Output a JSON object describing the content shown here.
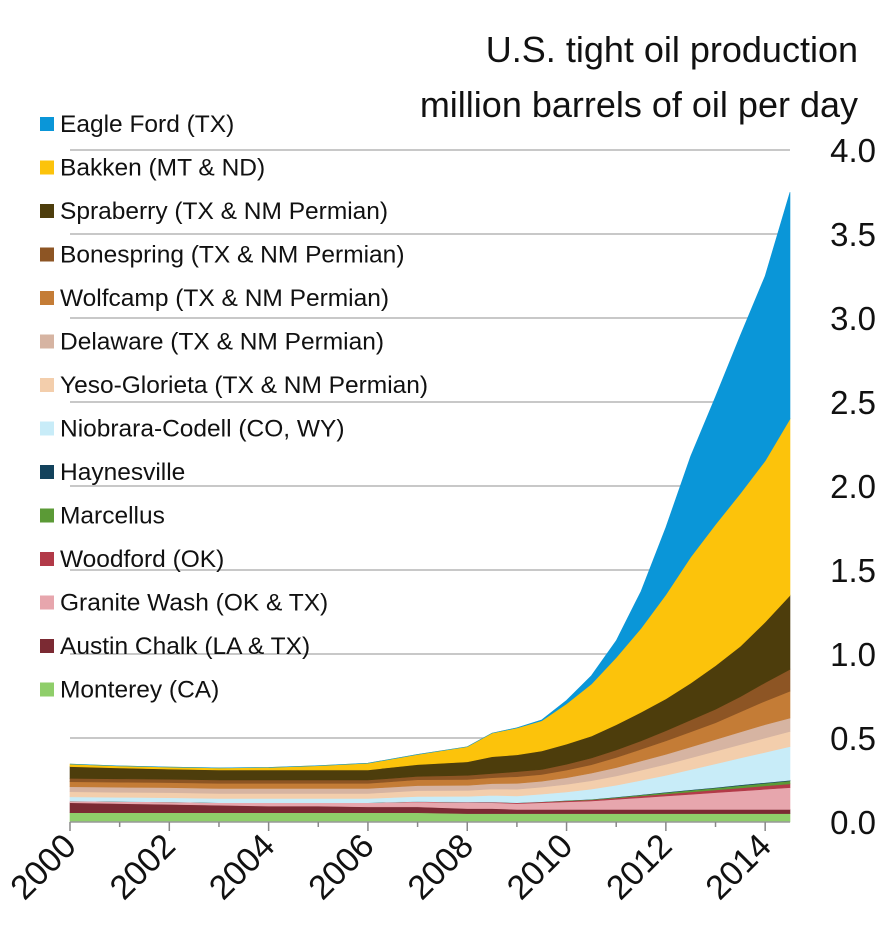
{
  "chart_data": {
    "type": "area",
    "stacked": true,
    "title": "U.S. tight oil production",
    "subtitle": "million barrels of oil per day",
    "xlabel": "",
    "ylabel": "",
    "xlim": [
      2000,
      2014.5
    ],
    "ylim": [
      0,
      4.0
    ],
    "y_ticks": [
      "0.0",
      "0.5",
      "1.0",
      "1.5",
      "2.0",
      "2.5",
      "3.0",
      "3.5",
      "4.0"
    ],
    "x_ticks": [
      "2000",
      "2002",
      "2004",
      "2006",
      "2008",
      "2010",
      "2012",
      "2014"
    ],
    "grid": "horizontal",
    "y_axis_side": "right",
    "legend_position": "top-left",
    "x": [
      2000,
      2001,
      2002,
      2003,
      2004,
      2005,
      2006,
      2007,
      2008,
      2008.5,
      2009,
      2009.5,
      2010,
      2010.5,
      2011,
      2011.5,
      2012,
      2012.5,
      2013,
      2013.5,
      2014,
      2014.5
    ],
    "series": [
      {
        "name": "Monterey (CA)",
        "color": "#8fce6a",
        "values": [
          0.055,
          0.055,
          0.055,
          0.055,
          0.055,
          0.055,
          0.055,
          0.055,
          0.05,
          0.05,
          0.05,
          0.05,
          0.05,
          0.05,
          0.05,
          0.05,
          0.05,
          0.05,
          0.05,
          0.05,
          0.05,
          0.05
        ]
      },
      {
        "name": "Austin Chalk (LA & TX)",
        "color": "#7b2a33",
        "values": [
          0.06,
          0.055,
          0.05,
          0.045,
          0.04,
          0.04,
          0.035,
          0.035,
          0.03,
          0.03,
          0.025,
          0.025,
          0.025,
          0.025,
          0.025,
          0.025,
          0.025,
          0.025,
          0.025,
          0.025,
          0.025,
          0.025
        ]
      },
      {
        "name": "Granite Wash (OK & TX)",
        "color": "#e7a6ad",
        "values": [
          0.01,
          0.012,
          0.015,
          0.015,
          0.02,
          0.02,
          0.025,
          0.03,
          0.035,
          0.035,
          0.035,
          0.04,
          0.045,
          0.05,
          0.06,
          0.07,
          0.08,
          0.09,
          0.1,
          0.11,
          0.12,
          0.13
        ]
      },
      {
        "name": "Woodford (OK)",
        "color": "#b23a48",
        "values": [
          0,
          0,
          0,
          0,
          0,
          0,
          0,
          0.002,
          0.003,
          0.004,
          0.005,
          0.005,
          0.006,
          0.007,
          0.008,
          0.01,
          0.012,
          0.014,
          0.016,
          0.018,
          0.02,
          0.022
        ]
      },
      {
        "name": "Marcellus",
        "color": "#5b9a36",
        "values": [
          0,
          0,
          0,
          0,
          0,
          0,
          0,
          0,
          0,
          0,
          0,
          0.001,
          0.002,
          0.003,
          0.004,
          0.006,
          0.008,
          0.01,
          0.012,
          0.014,
          0.016,
          0.018
        ]
      },
      {
        "name": "Haynesville",
        "color": "#13425c",
        "values": [
          0,
          0,
          0,
          0,
          0,
          0,
          0,
          0,
          0,
          0,
          0,
          0,
          0.001,
          0.001,
          0.002,
          0.002,
          0.003,
          0.003,
          0.003,
          0.004,
          0.004,
          0.004
        ]
      },
      {
        "name": "Niobrara-Codell (CO, WY)",
        "color": "#c8ecf8",
        "values": [
          0.025,
          0.025,
          0.025,
          0.025,
          0.025,
          0.025,
          0.025,
          0.03,
          0.035,
          0.04,
          0.04,
          0.045,
          0.05,
          0.06,
          0.07,
          0.085,
          0.1,
          0.12,
          0.14,
          0.16,
          0.18,
          0.2
        ]
      },
      {
        "name": "Yeso-Glorieta (TX & NM Permian)",
        "color": "#f3ceac",
        "values": [
          0.03,
          0.03,
          0.03,
          0.03,
          0.03,
          0.03,
          0.03,
          0.035,
          0.035,
          0.038,
          0.04,
          0.042,
          0.045,
          0.05,
          0.055,
          0.06,
          0.065,
          0.07,
          0.075,
          0.08,
          0.085,
          0.09
        ]
      },
      {
        "name": "Delaware (TX & NM Permian)",
        "color": "#d6b4a2",
        "values": [
          0.03,
          0.03,
          0.03,
          0.03,
          0.03,
          0.03,
          0.03,
          0.03,
          0.03,
          0.032,
          0.035,
          0.035,
          0.04,
          0.045,
          0.05,
          0.055,
          0.06,
          0.065,
          0.07,
          0.075,
          0.08,
          0.08
        ]
      },
      {
        "name": "Wolfcamp (TX & NM Permian)",
        "color": "#c47c36",
        "values": [
          0.03,
          0.03,
          0.03,
          0.03,
          0.03,
          0.03,
          0.03,
          0.035,
          0.035,
          0.035,
          0.04,
          0.04,
          0.045,
          0.05,
          0.06,
          0.07,
          0.08,
          0.09,
          0.1,
          0.12,
          0.14,
          0.16
        ]
      },
      {
        "name": "Bonespring (TX & NM Permian)",
        "color": "#8d5524",
        "values": [
          0.02,
          0.02,
          0.02,
          0.02,
          0.02,
          0.02,
          0.02,
          0.02,
          0.025,
          0.025,
          0.03,
          0.03,
          0.035,
          0.04,
          0.045,
          0.05,
          0.06,
          0.07,
          0.08,
          0.09,
          0.11,
          0.13
        ]
      },
      {
        "name": "Spraberry (TX & NM Permian)",
        "color": "#4d3d0c",
        "values": [
          0.07,
          0.065,
          0.06,
          0.06,
          0.06,
          0.06,
          0.06,
          0.07,
          0.08,
          0.1,
          0.1,
          0.11,
          0.12,
          0.13,
          0.15,
          0.17,
          0.19,
          0.22,
          0.26,
          0.3,
          0.36,
          0.44
        ]
      },
      {
        "name": "Bakken (MT & ND)",
        "color": "#fcc30b",
        "values": [
          0.015,
          0.012,
          0.012,
          0.012,
          0.015,
          0.025,
          0.04,
          0.06,
          0.09,
          0.14,
          0.16,
          0.18,
          0.24,
          0.31,
          0.4,
          0.5,
          0.62,
          0.75,
          0.84,
          0.91,
          0.96,
          1.05
        ]
      },
      {
        "name": "Eagle Ford (TX)",
        "color": "#0a96d8",
        "values": [
          0,
          0,
          0,
          0,
          0,
          0,
          0,
          0,
          0,
          0,
          0.001,
          0.005,
          0.02,
          0.05,
          0.1,
          0.22,
          0.4,
          0.6,
          0.76,
          0.94,
          1.1,
          1.35
        ]
      }
    ]
  }
}
